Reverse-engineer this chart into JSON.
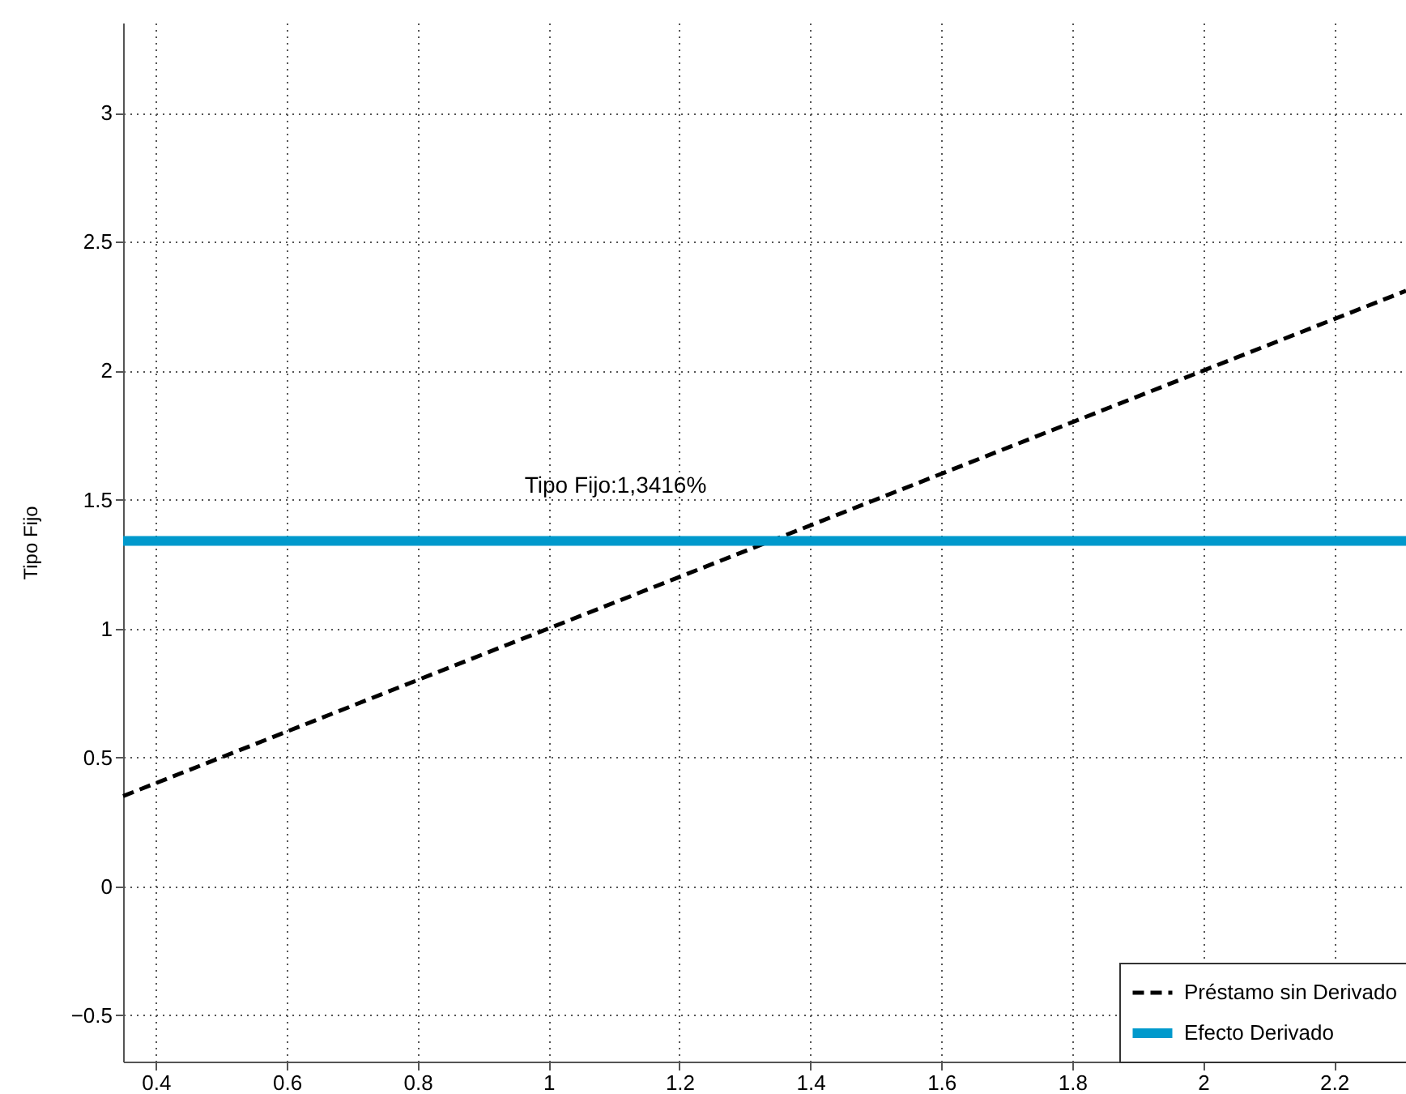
{
  "chart_data": {
    "type": "line",
    "ylabel": "Tipo Fijo",
    "xlim": [
      0.35,
      2.31
    ],
    "xticks": [
      0.4,
      0.6,
      0.8,
      1,
      1.2,
      1.4,
      1.6,
      1.8,
      2,
      2.2
    ],
    "ylim": [
      -0.68,
      3.35
    ],
    "yticks": [
      -0.5,
      0,
      0.5,
      1,
      1.5,
      2,
      2.5,
      3
    ],
    "grid": true,
    "legend": "bottom right",
    "x": [
      0.35,
      2.31
    ],
    "series": [
      {
        "name": "Préstamo sin Derivado",
        "color": "#000000",
        "line_style": "dashed",
        "values": [
          0.35,
          2.31
        ]
      },
      {
        "name": "Efecto Derivado",
        "color": "#0099cc",
        "line_style": "solid",
        "values": [
          1.34,
          1.34
        ]
      }
    ],
    "annotations": [
      "Tipo Fijo:1,3416%"
    ]
  }
}
